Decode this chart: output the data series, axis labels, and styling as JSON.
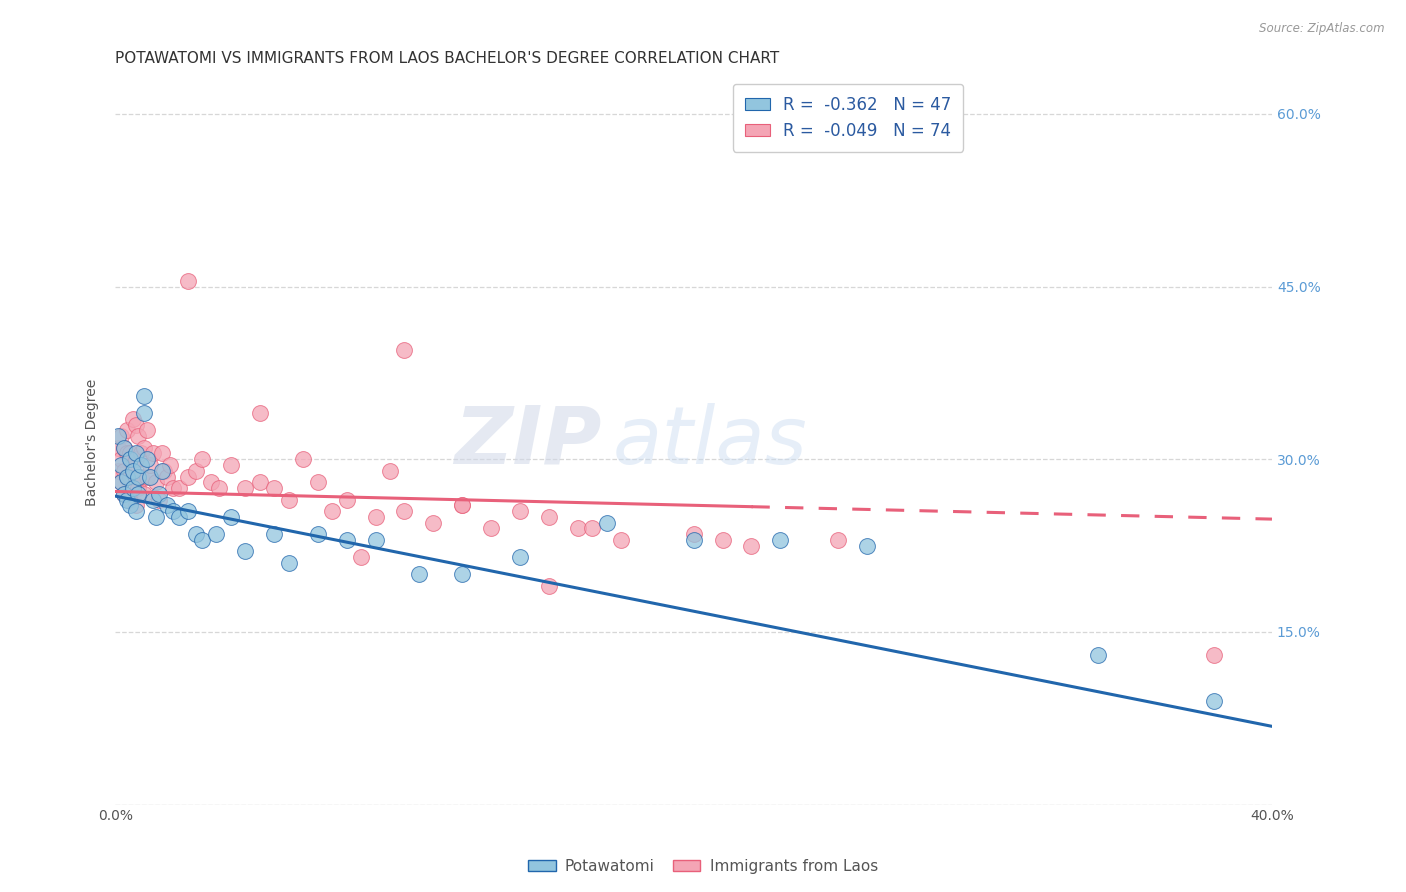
{
  "title": "POTAWATOMI VS IMMIGRANTS FROM LAOS BACHELOR'S DEGREE CORRELATION CHART",
  "source": "Source: ZipAtlas.com",
  "ylabel": "Bachelor's Degree",
  "xlim": [
    0.0,
    0.4
  ],
  "ylim": [
    0.0,
    0.63
  ],
  "blue_color": "#92c5de",
  "pink_color": "#f4a5b5",
  "blue_line_color": "#2166ac",
  "pink_line_color": "#e8607a",
  "blue_r": "-0.362",
  "blue_n": "47",
  "pink_r": "-0.049",
  "pink_n": "74",
  "watermark_zip": "ZIP",
  "watermark_atlas": "atlas",
  "potawatomi_x": [
    0.001,
    0.002,
    0.002,
    0.003,
    0.003,
    0.004,
    0.004,
    0.005,
    0.005,
    0.006,
    0.006,
    0.007,
    0.007,
    0.008,
    0.008,
    0.009,
    0.01,
    0.01,
    0.011,
    0.012,
    0.013,
    0.014,
    0.015,
    0.016,
    0.018,
    0.02,
    0.022,
    0.025,
    0.028,
    0.03,
    0.035,
    0.04,
    0.045,
    0.055,
    0.06,
    0.07,
    0.08,
    0.09,
    0.105,
    0.12,
    0.14,
    0.17,
    0.2,
    0.23,
    0.26,
    0.34,
    0.38
  ],
  "potawatomi_y": [
    0.32,
    0.28,
    0.295,
    0.27,
    0.31,
    0.285,
    0.265,
    0.3,
    0.26,
    0.29,
    0.275,
    0.305,
    0.255,
    0.285,
    0.27,
    0.295,
    0.355,
    0.34,
    0.3,
    0.285,
    0.265,
    0.25,
    0.27,
    0.29,
    0.26,
    0.255,
    0.25,
    0.255,
    0.235,
    0.23,
    0.235,
    0.25,
    0.22,
    0.235,
    0.21,
    0.235,
    0.23,
    0.23,
    0.2,
    0.2,
    0.215,
    0.245,
    0.23,
    0.23,
    0.225,
    0.13,
    0.09
  ],
  "laos_x": [
    0.001,
    0.001,
    0.002,
    0.002,
    0.002,
    0.003,
    0.003,
    0.003,
    0.004,
    0.004,
    0.004,
    0.005,
    0.005,
    0.005,
    0.006,
    0.006,
    0.006,
    0.007,
    0.007,
    0.007,
    0.008,
    0.008,
    0.009,
    0.009,
    0.01,
    0.01,
    0.011,
    0.011,
    0.012,
    0.013,
    0.014,
    0.015,
    0.016,
    0.017,
    0.018,
    0.019,
    0.02,
    0.022,
    0.025,
    0.028,
    0.03,
    0.033,
    0.036,
    0.04,
    0.045,
    0.05,
    0.055,
    0.06,
    0.065,
    0.07,
    0.075,
    0.08,
    0.09,
    0.1,
    0.11,
    0.12,
    0.13,
    0.14,
    0.15,
    0.16,
    0.175,
    0.2,
    0.21,
    0.22,
    0.05,
    0.085,
    0.1,
    0.12,
    0.15,
    0.165,
    0.025,
    0.25,
    0.095,
    0.38
  ],
  "laos_y": [
    0.29,
    0.31,
    0.28,
    0.3,
    0.32,
    0.27,
    0.29,
    0.31,
    0.285,
    0.305,
    0.325,
    0.265,
    0.285,
    0.305,
    0.275,
    0.295,
    0.335,
    0.26,
    0.3,
    0.33,
    0.275,
    0.32,
    0.285,
    0.305,
    0.27,
    0.31,
    0.285,
    0.325,
    0.295,
    0.305,
    0.28,
    0.265,
    0.305,
    0.29,
    0.285,
    0.295,
    0.275,
    0.275,
    0.285,
    0.29,
    0.3,
    0.28,
    0.275,
    0.295,
    0.275,
    0.28,
    0.275,
    0.265,
    0.3,
    0.28,
    0.255,
    0.265,
    0.25,
    0.255,
    0.245,
    0.26,
    0.24,
    0.255,
    0.25,
    0.24,
    0.23,
    0.235,
    0.23,
    0.225,
    0.34,
    0.215,
    0.395,
    0.26,
    0.19,
    0.24,
    0.455,
    0.23,
    0.29,
    0.13
  ],
  "grid_color": "#d3d3d3",
  "bg_color": "#ffffff",
  "title_fontsize": 11,
  "tick_fontsize": 10
}
